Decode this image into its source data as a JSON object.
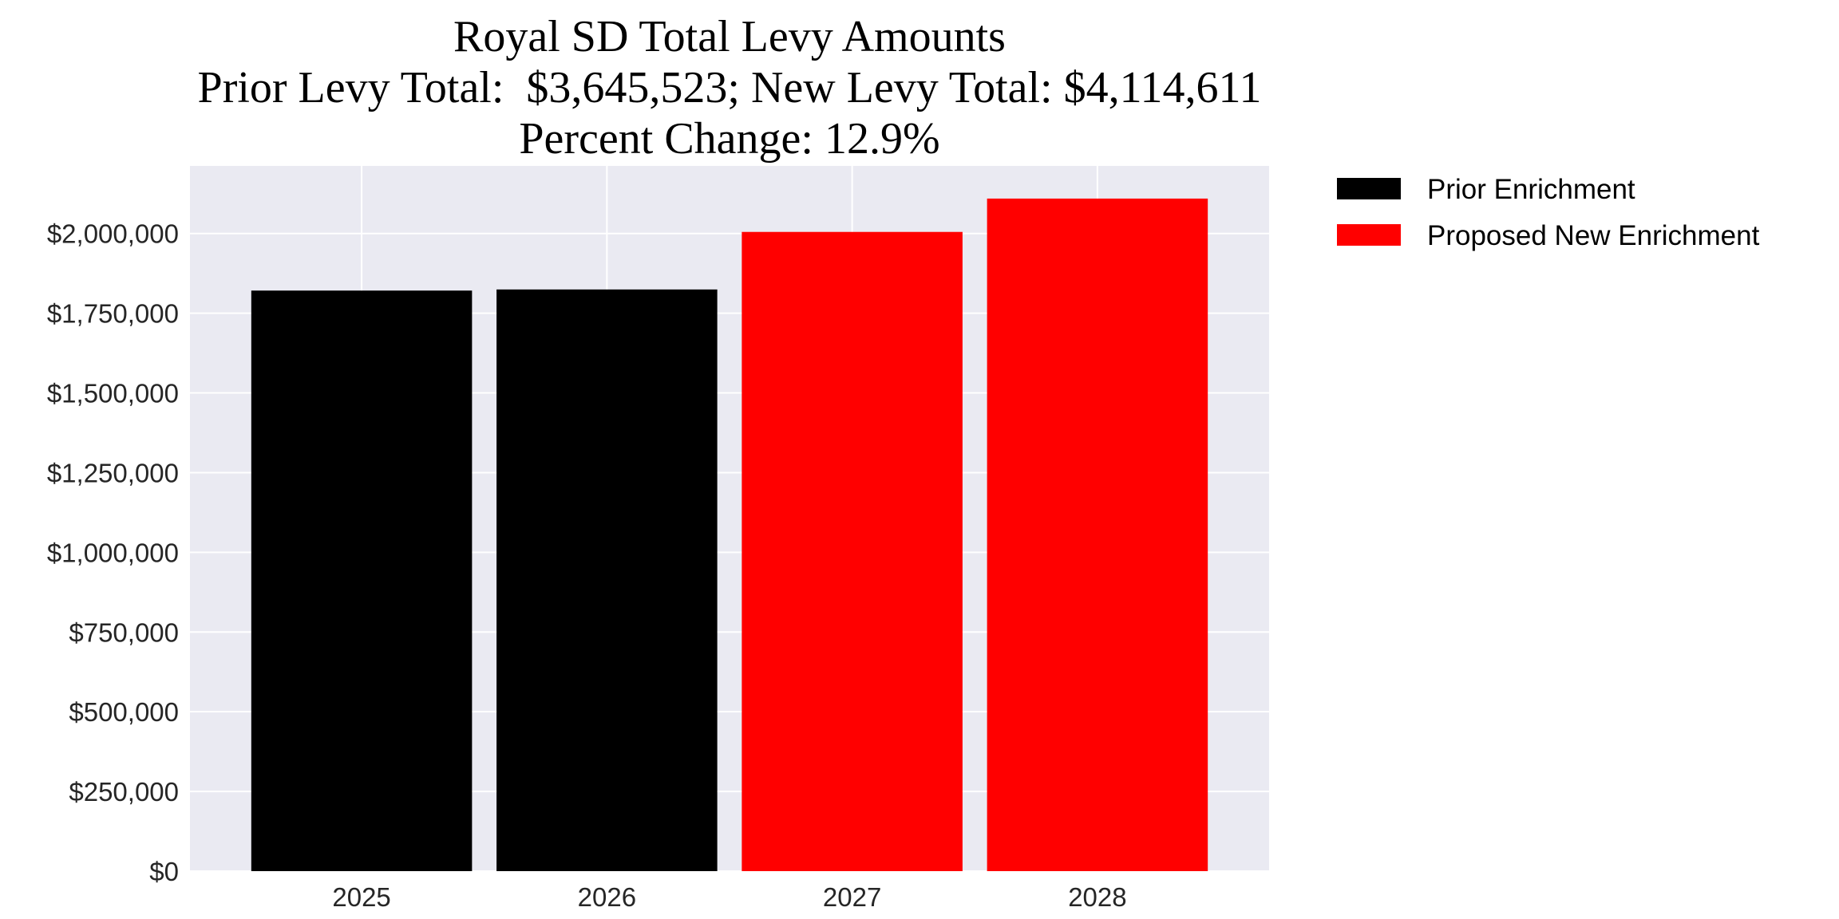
{
  "chart_data": {
    "type": "bar",
    "title": "Royal SD Total Levy Amounts",
    "subtitle_lines": [
      "Prior Levy Total:  $3,645,523; New Levy Total: $4,114,611",
      "Percent Change: 12.9%"
    ],
    "xlabel": "",
    "ylabel": "",
    "categories": [
      "2025",
      "2026",
      "2027",
      "2028"
    ],
    "values": [
      1821000,
      1824523,
      2005000,
      2109611
    ],
    "bar_series": [
      "Prior Enrichment",
      "Prior Enrichment",
      "Proposed New Enrichment",
      "Proposed New Enrichment"
    ],
    "series": [
      {
        "name": "Prior Enrichment",
        "color": "#000000"
      },
      {
        "name": "Proposed New Enrichment",
        "color": "#ff0000"
      }
    ],
    "yticks": [
      0,
      250000,
      500000,
      750000,
      1000000,
      1250000,
      1500000,
      1750000,
      2000000
    ],
    "ytick_labels": [
      "$0",
      "$250,000",
      "$500,000",
      "$750,000",
      "$1,000,000",
      "$1,250,000",
      "$1,500,000",
      "$1,750,000",
      "$2,000,000"
    ],
    "ylim": [
      0,
      2212000
    ],
    "grid": true,
    "background": "#eaeaf2",
    "legend_placement": "outside-top-right"
  }
}
